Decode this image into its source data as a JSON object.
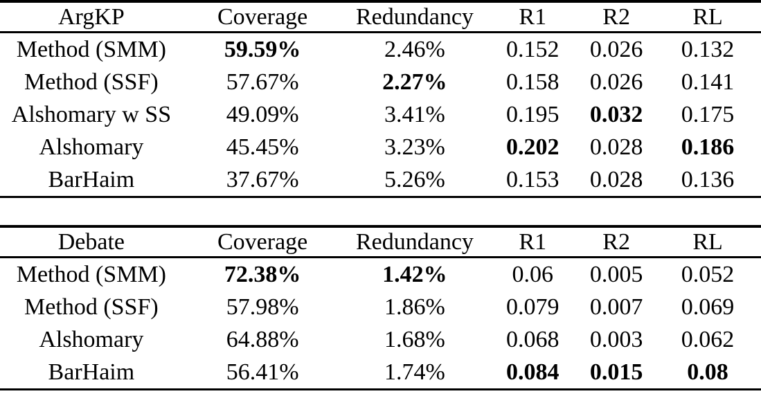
{
  "colors": {
    "text": "#000000",
    "background": "#ffffff",
    "rule": "#000000"
  },
  "tables": [
    {
      "title": "ArgKP",
      "columns": [
        {
          "label": "ArgKP"
        },
        {
          "label": "Coverage"
        },
        {
          "label": "Redundancy"
        },
        {
          "label": "R1"
        },
        {
          "label": "R2"
        },
        {
          "label": "RL"
        }
      ],
      "rows": [
        {
          "cells": [
            {
              "text": "Method (SMM)",
              "bold": false
            },
            {
              "text": "59.59%",
              "bold": true
            },
            {
              "text": "2.46%",
              "bold": false
            },
            {
              "text": "0.152",
              "bold": false
            },
            {
              "text": "0.026",
              "bold": false
            },
            {
              "text": "0.132",
              "bold": false
            }
          ]
        },
        {
          "cells": [
            {
              "text": "Method (SSF)",
              "bold": false
            },
            {
              "text": "57.67%",
              "bold": false
            },
            {
              "text": "2.27%",
              "bold": true
            },
            {
              "text": "0.158",
              "bold": false
            },
            {
              "text": "0.026",
              "bold": false
            },
            {
              "text": "0.141",
              "bold": false
            }
          ]
        },
        {
          "cells": [
            {
              "text": "Alshomary w SS",
              "bold": false
            },
            {
              "text": "49.09%",
              "bold": false
            },
            {
              "text": "3.41%",
              "bold": false
            },
            {
              "text": "0.195",
              "bold": false
            },
            {
              "text": "0.032",
              "bold": true
            },
            {
              "text": "0.175",
              "bold": false
            }
          ]
        },
        {
          "cells": [
            {
              "text": "Alshomary",
              "bold": false
            },
            {
              "text": "45.45%",
              "bold": false
            },
            {
              "text": "3.23%",
              "bold": false
            },
            {
              "text": "0.202",
              "bold": true
            },
            {
              "text": "0.028",
              "bold": false
            },
            {
              "text": "0.186",
              "bold": true
            }
          ]
        },
        {
          "cells": [
            {
              "text": "BarHaim",
              "bold": false
            },
            {
              "text": "37.67%",
              "bold": false
            },
            {
              "text": "5.26%",
              "bold": false
            },
            {
              "text": "0.153",
              "bold": false
            },
            {
              "text": "0.028",
              "bold": false
            },
            {
              "text": "0.136",
              "bold": false
            }
          ]
        }
      ]
    },
    {
      "title": "Debate",
      "columns": [
        {
          "label": "Debate"
        },
        {
          "label": "Coverage"
        },
        {
          "label": "Redundancy"
        },
        {
          "label": "R1"
        },
        {
          "label": "R2"
        },
        {
          "label": "RL"
        }
      ],
      "rows": [
        {
          "cells": [
            {
              "text": "Method (SMM)",
              "bold": false
            },
            {
              "text": "72.38%",
              "bold": true
            },
            {
              "text": "1.42%",
              "bold": true
            },
            {
              "text": "0.06",
              "bold": false
            },
            {
              "text": "0.005",
              "bold": false
            },
            {
              "text": "0.052",
              "bold": false
            }
          ]
        },
        {
          "cells": [
            {
              "text": "Method (SSF)",
              "bold": false
            },
            {
              "text": "57.98%",
              "bold": false
            },
            {
              "text": "1.86%",
              "bold": false
            },
            {
              "text": "0.079",
              "bold": false
            },
            {
              "text": "0.007",
              "bold": false
            },
            {
              "text": "0.069",
              "bold": false
            }
          ]
        },
        {
          "cells": [
            {
              "text": "Alshomary",
              "bold": false
            },
            {
              "text": "64.88%",
              "bold": false
            },
            {
              "text": "1.68%",
              "bold": false
            },
            {
              "text": "0.068",
              "bold": false
            },
            {
              "text": "0.003",
              "bold": false
            },
            {
              "text": "0.062",
              "bold": false
            }
          ]
        },
        {
          "cells": [
            {
              "text": "BarHaim",
              "bold": false
            },
            {
              "text": "56.41%",
              "bold": false
            },
            {
              "text": "1.74%",
              "bold": false
            },
            {
              "text": "0.084",
              "bold": true
            },
            {
              "text": "0.015",
              "bold": true
            },
            {
              "text": "0.08",
              "bold": true
            }
          ]
        }
      ]
    }
  ]
}
